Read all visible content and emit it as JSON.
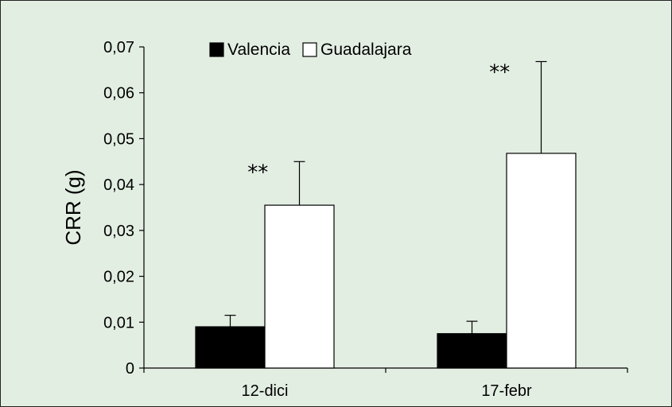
{
  "chart_data": {
    "type": "bar",
    "title": "",
    "xlabel": "",
    "ylabel": "CRR (g)",
    "ylim": [
      0,
      0.07
    ],
    "yticks": [
      "0",
      "0,01",
      "0,02",
      "0,03",
      "0,04",
      "0,05",
      "0,06",
      "0,07"
    ],
    "categories": [
      "12-dici",
      "17-febr"
    ],
    "series": [
      {
        "name": "Valencia",
        "color": "#000000",
        "values": [
          0.009,
          0.0075
        ],
        "errors": [
          0.0025,
          0.0027
        ]
      },
      {
        "name": "Guadalajara",
        "color": "#ffffff",
        "values": [
          0.0355,
          0.0468
        ],
        "errors": [
          0.0095,
          0.02
        ]
      }
    ],
    "annotations": [
      {
        "text": "**",
        "category": "12-dici"
      },
      {
        "text": "**",
        "category": "17-febr"
      }
    ],
    "legend": "top-center",
    "grid": false,
    "background": "#e3eee3"
  }
}
